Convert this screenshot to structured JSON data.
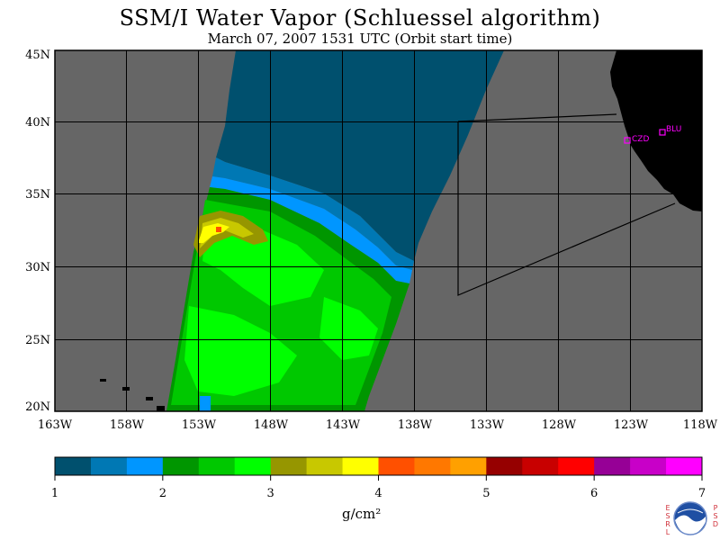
{
  "title": "SSM/I Water Vapor (Schluessel algorithm)",
  "subtitle": "March 07, 2007  1531 UTC  (Orbit start time)",
  "map": {
    "lat_labels": [
      "45N",
      "40N",
      "35N",
      "30N",
      "25N",
      "20N"
    ],
    "lon_labels": [
      "163W",
      "158W",
      "153W",
      "148W",
      "143W",
      "138W",
      "133W",
      "128W",
      "123W",
      "118W"
    ],
    "stations": [
      {
        "id": "CZD",
        "label": "CZD"
      },
      {
        "id": "BLU",
        "label": "BLU"
      }
    ],
    "colors": {
      "no_data": "#666666",
      "land": "#000000",
      "station": "#ff00ff"
    }
  },
  "colorbar": {
    "colors": [
      "#00506e",
      "#0078b4",
      "#0096ff",
      "#009600",
      "#00c800",
      "#00ff00",
      "#969600",
      "#c8c800",
      "#ffff00",
      "#ff5000",
      "#ff7800",
      "#ffa000",
      "#960000",
      "#c80000",
      "#ff0000",
      "#960096",
      "#c800c8",
      "#ff00ff"
    ],
    "tick_labels": [
      "1",
      "2",
      "3",
      "4",
      "5",
      "6",
      "7"
    ],
    "unit": "g/cm²"
  },
  "logo": {
    "left_text": "ESRL",
    "right_text": "PSD",
    "name": "NOAA"
  }
}
